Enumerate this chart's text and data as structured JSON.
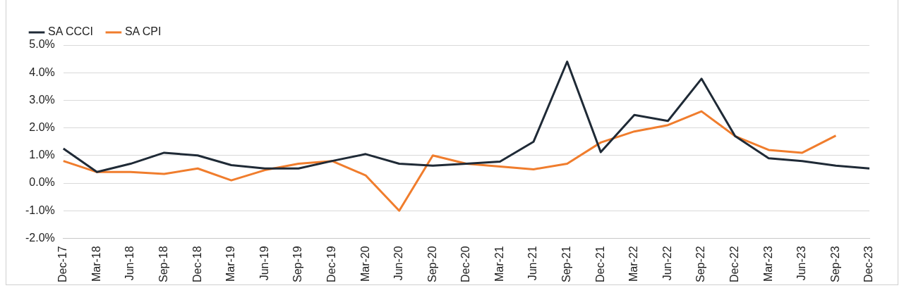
{
  "chart_data": {
    "type": "line",
    "categories": [
      "Dec-17",
      "Mar-18",
      "Jun-18",
      "Sep-18",
      "Dec-18",
      "Mar-19",
      "Jun-19",
      "Sep-19",
      "Dec-19",
      "Mar-20",
      "Jun-20",
      "Sep-20",
      "Dec-20",
      "Mar-21",
      "Jun-21",
      "Sep-21",
      "Dec-21",
      "Mar-22",
      "Jun-22",
      "Sep-22",
      "Dec-22",
      "Mar-23",
      "Jun-23",
      "Sep-23",
      "Dec-23"
    ],
    "series": [
      {
        "name": "SA CCCI",
        "color": "#1f2a36",
        "values": [
          1.25,
          0.4,
          0.7,
          1.1,
          1.0,
          0.65,
          0.53,
          0.53,
          0.8,
          1.05,
          0.7,
          0.63,
          0.7,
          0.78,
          1.5,
          4.4,
          1.12,
          2.47,
          2.25,
          3.78,
          1.7,
          0.9,
          0.8,
          0.63,
          0.53
        ]
      },
      {
        "name": "SA CPI",
        "color": "#f07d2d",
        "values": [
          0.8,
          0.4,
          0.4,
          0.33,
          0.53,
          0.1,
          0.47,
          0.7,
          0.8,
          0.28,
          -1.0,
          1.0,
          0.7,
          0.6,
          0.5,
          0.7,
          1.47,
          1.87,
          2.1,
          2.6,
          1.7,
          1.2,
          1.1,
          1.72,
          null
        ]
      }
    ],
    "ylim": [
      -2,
      5
    ],
    "yticks": [
      {
        "value": -2,
        "label": "-2.0%"
      },
      {
        "value": -1,
        "label": "-1.0%"
      },
      {
        "value": 0,
        "label": "0.0%"
      },
      {
        "value": 1,
        "label": "1.0%"
      },
      {
        "value": 2,
        "label": "2.0%"
      },
      {
        "value": 3,
        "label": "3.0%"
      },
      {
        "value": 4,
        "label": "4.0%"
      },
      {
        "value": 5,
        "label": "5.0%"
      }
    ],
    "grid": "y",
    "legend": "top left",
    "marker": "none",
    "line_style": "solid"
  }
}
